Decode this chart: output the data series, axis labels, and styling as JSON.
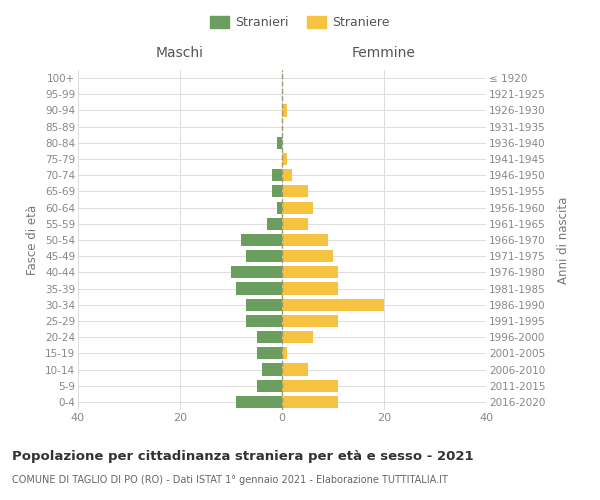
{
  "age_groups": [
    "0-4",
    "5-9",
    "10-14",
    "15-19",
    "20-24",
    "25-29",
    "30-34",
    "35-39",
    "40-44",
    "45-49",
    "50-54",
    "55-59",
    "60-64",
    "65-69",
    "70-74",
    "75-79",
    "80-84",
    "85-89",
    "90-94",
    "95-99",
    "100+"
  ],
  "birth_years": [
    "2016-2020",
    "2011-2015",
    "2006-2010",
    "2001-2005",
    "1996-2000",
    "1991-1995",
    "1986-1990",
    "1981-1985",
    "1976-1980",
    "1971-1975",
    "1966-1970",
    "1961-1965",
    "1956-1960",
    "1951-1955",
    "1946-1950",
    "1941-1945",
    "1936-1940",
    "1931-1935",
    "1926-1930",
    "1921-1925",
    "≤ 1920"
  ],
  "maschi": [
    9,
    5,
    4,
    5,
    5,
    7,
    7,
    9,
    10,
    7,
    8,
    3,
    1,
    2,
    2,
    0,
    1,
    0,
    0,
    0,
    0
  ],
  "femmine": [
    11,
    11,
    5,
    1,
    6,
    11,
    20,
    11,
    11,
    10,
    9,
    5,
    6,
    5,
    2,
    1,
    0,
    0,
    1,
    0,
    0
  ],
  "color_maschi": "#6a9e5e",
  "color_femmine": "#f5c242",
  "title": "Popolazione per cittadinanza straniera per età e sesso - 2021",
  "subtitle": "COMUNE DI TAGLIO DI PO (RO) - Dati ISTAT 1° gennaio 2021 - Elaborazione TUTTITALIA.IT",
  "label_maschi": "Maschi",
  "label_femmine": "Femmine",
  "ylabel_left": "Fasce di età",
  "ylabel_right": "Anni di nascita",
  "legend_maschi": "Stranieri",
  "legend_femmine": "Straniere",
  "xlim": 40,
  "background_color": "#ffffff",
  "grid_color": "#dddddd"
}
